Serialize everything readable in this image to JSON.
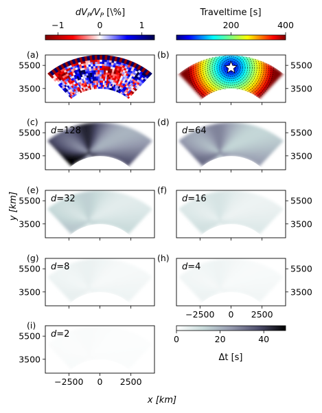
{
  "chart_data": {
    "type": "heatmap",
    "xlabel": "x [km]",
    "ylabel": "y [km]",
    "x_ticks": [
      -2500,
      0,
      2500
    ],
    "x_tick_labels": [
      "−2500",
      "0",
      "2500"
    ],
    "y_ticks": [
      3500,
      5500
    ],
    "y_tick_labels": [
      "3500",
      "5500"
    ],
    "xlim": [
      -4400,
      4400
    ],
    "ylim": [
      2300,
      6400
    ],
    "panels": [
      {
        "id": "a",
        "label": "(a)",
        "field": "dvp",
        "d_label": ""
      },
      {
        "id": "b",
        "label": "(b)",
        "field": "traveltime",
        "d_label": ""
      },
      {
        "id": "c",
        "label": "(c)",
        "field": "dt",
        "d_label": "d = 128",
        "dt_scale": 1.0
      },
      {
        "id": "d",
        "label": "(d)",
        "field": "dt",
        "d_label": "d = 64",
        "dt_scale": 0.65
      },
      {
        "id": "e",
        "label": "(e)",
        "field": "dt",
        "d_label": "d = 32",
        "dt_scale": 0.32
      },
      {
        "id": "f",
        "label": "(f)",
        "field": "dt",
        "d_label": "d = 16",
        "dt_scale": 0.2
      },
      {
        "id": "g",
        "label": "(g)",
        "field": "dt",
        "d_label": "d = 8",
        "dt_scale": 0.1
      },
      {
        "id": "h",
        "label": "(h)",
        "field": "dt",
        "d_label": "d = 4",
        "dt_scale": 0.08
      },
      {
        "id": "i",
        "label": "(i)",
        "field": "dt",
        "d_label": "d = 2",
        "dt_scale": 0.03
      }
    ],
    "colorbars": {
      "dvp": {
        "label": "dVₚ/Vₚ [\\%]",
        "label_main": "dV",
        "label_sub1": "P",
        "label_mid": "/V",
        "label_sub2": "P",
        "label_tail": " [\\%]",
        "range": [
          -1.3,
          1.3
        ],
        "ticks": [
          -1,
          0,
          1
        ],
        "tick_labels": [
          "−1",
          "0",
          "1"
        ],
        "cmap": "seismic"
      },
      "traveltime": {
        "label": "Traveltime [s]",
        "range": [
          0,
          400
        ],
        "ticks": [
          200,
          400
        ],
        "tick_labels": [
          "200",
          "400"
        ],
        "cmap": "jet"
      },
      "dt": {
        "label": "Δt [s]",
        "range": [
          0,
          50
        ],
        "ticks": [
          0,
          20,
          40
        ],
        "tick_labels": [
          "0",
          "20",
          "40"
        ],
        "cmap": "bone_r"
      }
    },
    "source_marker": {
      "x": 0,
      "y": 5300,
      "shape": "star",
      "color": "#ffffff"
    }
  }
}
